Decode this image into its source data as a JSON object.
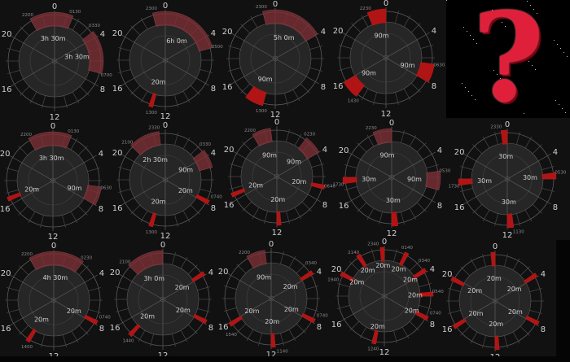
{
  "chart_data": {
    "type": "polar-clock",
    "hour_labels": [
      "0",
      "4",
      "8",
      "12",
      "16",
      "20"
    ],
    "colors": {
      "background": "#111111",
      "disk": "#262626",
      "grid": "#5a5a5a",
      "nap": "#b01414",
      "faded": "#7a3036"
    },
    "charts": [
      {
        "segments": [
          {
            "start": "2200",
            "end": "0130",
            "duration": "3h 30m",
            "faded": true
          },
          {
            "start": "0330",
            "end": "0700",
            "duration": "3h 30m",
            "faded": true
          }
        ],
        "time_labels": [
          "2200",
          "0130",
          "0330",
          "0700"
        ]
      },
      {
        "segments": [
          {
            "start": "2300",
            "end": "0500",
            "duration": "6h 0m",
            "faded": true
          },
          {
            "start": "1300",
            "end": "1320",
            "duration": "20m",
            "faded": false
          }
        ],
        "time_labels": [
          "2300",
          "0500",
          "1300"
        ]
      },
      {
        "segments": [
          {
            "start": "2300",
            "end": "0400",
            "duration": "5h 0m",
            "faded": true
          },
          {
            "start": "1300",
            "end": "1430",
            "duration": "90m",
            "faded": false
          }
        ],
        "time_labels": [
          "2300",
          "1300"
        ]
      },
      {
        "segments": [
          {
            "start": "2230",
            "end": "0000",
            "duration": "90m",
            "faded": false
          },
          {
            "start": "0630",
            "end": "0800",
            "duration": "90m",
            "faded": false
          },
          {
            "start": "1430",
            "end": "1600",
            "duration": "90m",
            "faded": false
          }
        ],
        "time_labels": [
          "2230",
          "0630",
          "1430"
        ]
      },
      {
        "segments": [
          {
            "start": "2200",
            "end": "0130",
            "duration": "3h 30m",
            "faded": true
          },
          {
            "start": "0630",
            "end": "0800",
            "duration": "90m",
            "faded": true
          },
          {
            "start": "1620",
            "end": "1640",
            "duration": "20m",
            "faded": false
          }
        ],
        "time_labels": [
          "2200",
          "0130",
          "0630"
        ]
      },
      {
        "segments": [
          {
            "start": "2100",
            "end": "2330",
            "duration": "2h 30m",
            "faded": true
          },
          {
            "start": "0330",
            "end": "0500",
            "duration": "90m",
            "faded": true
          },
          {
            "start": "0740",
            "end": "0800",
            "duration": "20m",
            "faded": false
          },
          {
            "start": "1300",
            "end": "1320",
            "duration": "20m",
            "faded": false
          }
        ],
        "time_labels": [
          "2100",
          "2330",
          "0330",
          "0740",
          "1300"
        ]
      },
      {
        "segments": [
          {
            "start": "2200",
            "end": "2330",
            "duration": "90m",
            "faded": true
          },
          {
            "start": "0230",
            "end": "0400",
            "duration": "90m",
            "faded": true
          },
          {
            "start": "0640",
            "end": "0700",
            "duration": "20m",
            "faded": false
          },
          {
            "start": "1140",
            "end": "1200",
            "duration": "20m",
            "faded": false
          },
          {
            "start": "1620",
            "end": "1640",
            "duration": "20m",
            "faded": false
          }
        ],
        "time_labels": [
          "2200",
          "0230",
          "0640"
        ]
      },
      {
        "segments": [
          {
            "start": "2230",
            "end": "0000",
            "duration": "90m",
            "faded": true
          },
          {
            "start": "0530",
            "end": "0700",
            "duration": "90m",
            "faded": true
          },
          {
            "start": "1130",
            "end": "1200",
            "duration": "30m",
            "faded": false
          },
          {
            "start": "1730",
            "end": "1800",
            "duration": "30m",
            "faded": false
          }
        ],
        "time_labels": [
          "2230",
          "0530",
          "1730"
        ]
      },
      {
        "segments": [
          {
            "start": "2330",
            "end": "0000",
            "duration": "30m",
            "faded": false
          },
          {
            "start": "0530",
            "end": "0600",
            "duration": "30m",
            "faded": false
          },
          {
            "start": "1130",
            "end": "1200",
            "duration": "30m",
            "faded": false
          },
          {
            "start": "1730",
            "end": "1800",
            "duration": "30m",
            "faded": false
          }
        ],
        "time_labels": [
          "2330",
          "0530",
          "1130",
          "1730"
        ]
      },
      {
        "segments": [
          {
            "start": "2200",
            "end": "0230",
            "duration": "4h 30m",
            "faded": true
          },
          {
            "start": "0740",
            "end": "0800",
            "duration": "20m",
            "faded": false
          },
          {
            "start": "1400",
            "end": "1420",
            "duration": "20m",
            "faded": false
          }
        ],
        "time_labels": [
          "2200",
          "0230",
          "0740",
          "1400"
        ]
      },
      {
        "segments": [
          {
            "start": "2100",
            "end": "0000",
            "duration": "3h 0m",
            "faded": true
          },
          {
            "start": "0340",
            "end": "0400",
            "duration": "20m",
            "faded": false
          },
          {
            "start": "0740",
            "end": "0800",
            "duration": "20m",
            "faded": false
          },
          {
            "start": "1440",
            "end": "1500",
            "duration": "20m",
            "faded": false
          }
        ],
        "time_labels": [
          "2100",
          "1440"
        ]
      },
      {
        "segments": [
          {
            "start": "2200",
            "end": "2330",
            "duration": "90m",
            "faded": true
          },
          {
            "start": "0340",
            "end": "0400",
            "duration": "20m",
            "faded": false
          },
          {
            "start": "0740",
            "end": "0800",
            "duration": "20m",
            "faded": false
          },
          {
            "start": "1140",
            "end": "1200",
            "duration": "20m",
            "faded": false
          },
          {
            "start": "1540",
            "end": "1600",
            "duration": "20m",
            "faded": false
          }
        ],
        "time_labels": [
          "2200",
          "0340",
          "0740",
          "1140",
          "1540"
        ]
      },
      {
        "segments": [
          {
            "start": "2340",
            "end": "0000",
            "duration": "20m",
            "faded": false
          },
          {
            "start": "0140",
            "end": "0200",
            "duration": "20m",
            "faded": false
          },
          {
            "start": "0340",
            "end": "0400",
            "duration": "20m",
            "faded": false
          },
          {
            "start": "0540",
            "end": "0600",
            "duration": "20m",
            "faded": false
          },
          {
            "start": "0740",
            "end": "0800",
            "duration": "20m",
            "faded": false
          },
          {
            "start": "1240",
            "end": "1300",
            "duration": "20m",
            "faded": false
          },
          {
            "start": "1940",
            "end": "2000",
            "duration": "20m",
            "faded": false
          },
          {
            "start": "2140",
            "end": "2200",
            "duration": "20m",
            "faded": false
          }
        ],
        "time_labels": [
          "2340",
          "0140",
          "0340",
          "0540",
          "0740",
          "1240",
          "1940",
          "2140"
        ]
      },
      {
        "segments": [
          {
            "start": "2340",
            "end": "0000",
            "duration": "20m",
            "faded": false
          },
          {
            "start": "0340",
            "end": "0400",
            "duration": "20m",
            "faded": false
          },
          {
            "start": "0740",
            "end": "0800",
            "duration": "20m",
            "faded": false
          },
          {
            "start": "1140",
            "end": "1200",
            "duration": "20m",
            "faded": false
          },
          {
            "start": "1540",
            "end": "1600",
            "duration": "20m",
            "faded": false
          },
          {
            "start": "1940",
            "end": "2000",
            "duration": "20m",
            "faded": false
          }
        ],
        "time_labels": []
      }
    ]
  },
  "question_panel": {
    "symbol": "?",
    "icon": "question-mark-icon"
  }
}
